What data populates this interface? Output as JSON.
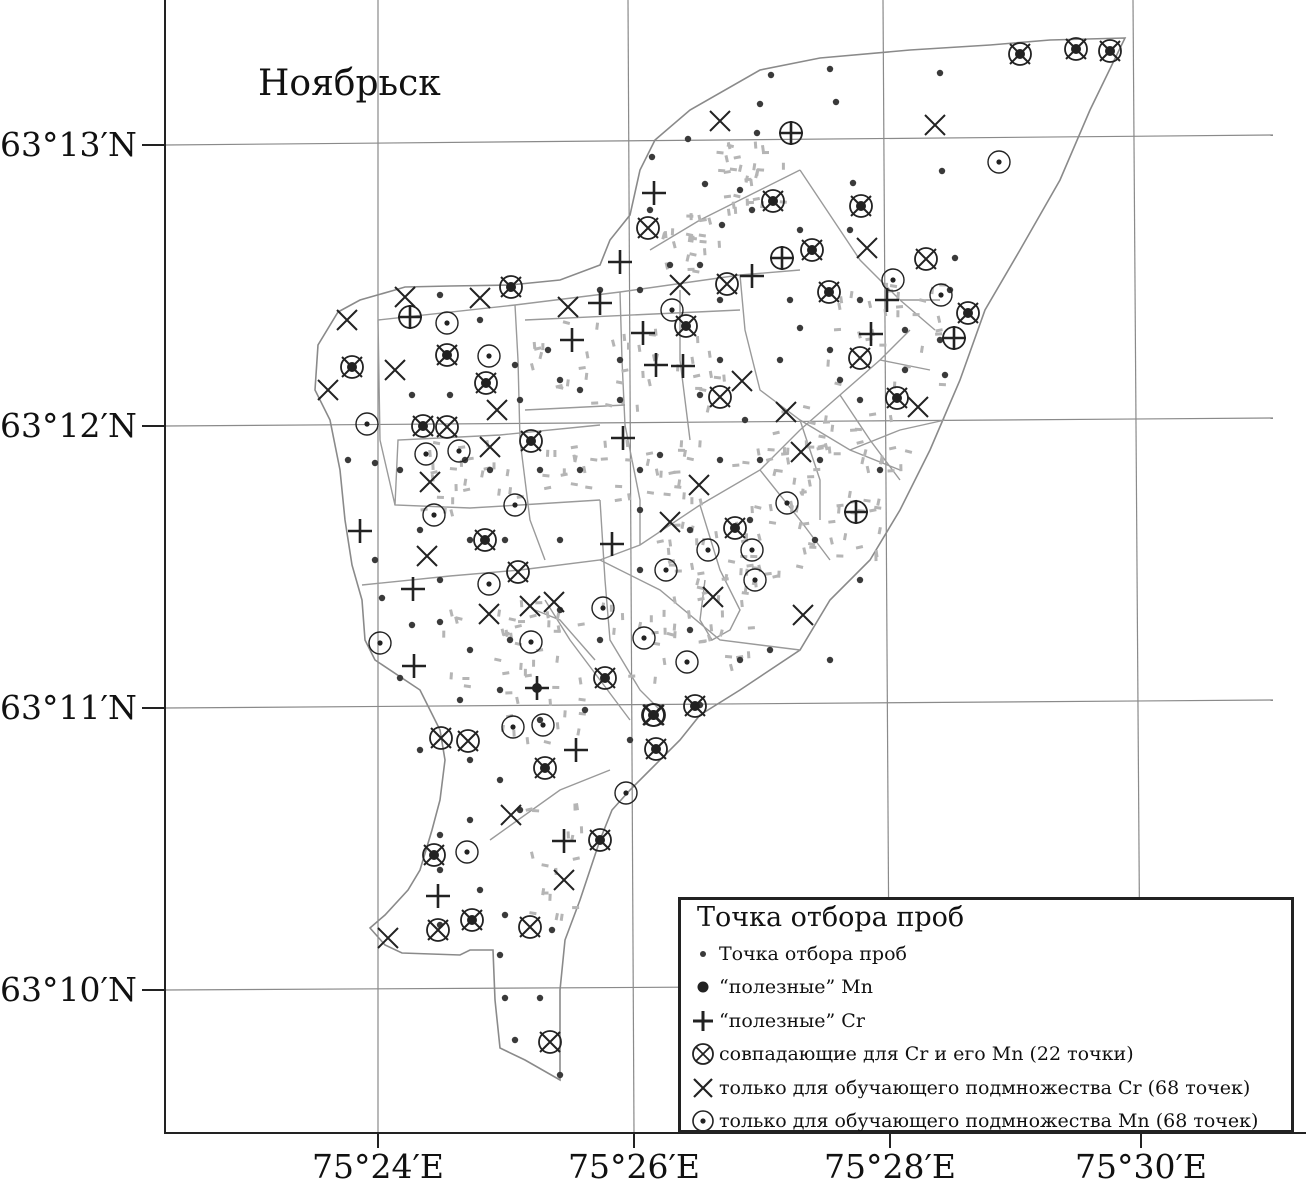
{
  "map": {
    "city_name": "Ноябрьск",
    "latitude_labels": [
      "63°13′N",
      "63°12′N",
      "63°11′N",
      "63°10′N"
    ],
    "longitude_labels": [
      "75°24′E",
      "75°26′E",
      "75°28′E",
      "75°30′E"
    ],
    "colors": {
      "boundary": "#8a8a8a",
      "grid": "#8a8a8a",
      "buildings": "#b5b5b5",
      "points": "#3a3a3a",
      "frame": "#222222"
    }
  },
  "legend": {
    "title": "Точка отбора проб",
    "items": [
      {
        "symbol": "small-dot-icon",
        "label": "Точка отбора проб"
      },
      {
        "symbol": "filled-circle-icon",
        "label": "“полезные” Mn"
      },
      {
        "symbol": "plus-icon",
        "label": "“полезные” Cr"
      },
      {
        "symbol": "circled-x-icon",
        "label": "совпадающие для Cr и его Mn (22 точки)"
      },
      {
        "symbol": "x-mark-icon",
        "label": "только для обучающего подмножества Cr (68 точек)"
      },
      {
        "symbol": "circled-dot-icon",
        "label": "только для обучающего подмножества Mn (68 точек)"
      }
    ]
  }
}
